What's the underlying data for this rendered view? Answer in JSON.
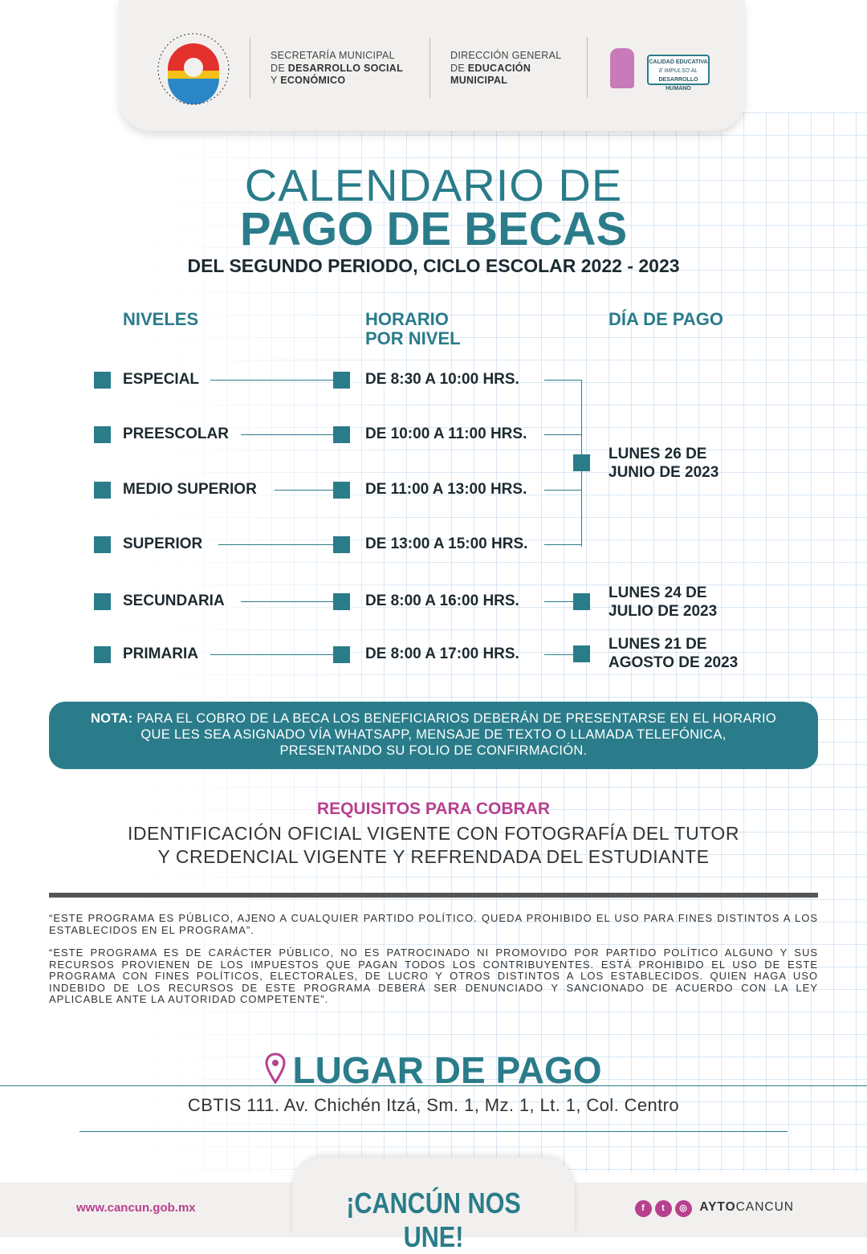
{
  "header": {
    "logo_text_top": "MUNICIPIO DE BENITO JUÁREZ",
    "logo_text_bottom": "QUINTANA ROO",
    "org1_line1": "SECRETARÍA MUNICIPAL",
    "org1_line2_prefix": "DE ",
    "org1_line2_bold": "DESARROLLO SOCIAL",
    "org1_line3_prefix": "Y ",
    "org1_line3_bold": "ECONÓMICO",
    "org2_line1": "DIRECCIÓN GENERAL",
    "org2_line2_prefix": "DE ",
    "org2_line2_bold": "EDUCACIÓN",
    "org2_line3_bold": "MUNICIPAL",
    "badge_line1": "CALIDAD EDUCATIVA",
    "badge_line2": "E IMPULSO AL",
    "badge_line3": "DESARROLLO HUMANO"
  },
  "title": {
    "line1": "CALENDARIO DE",
    "line2": "PAGO DE BECAS",
    "subtitle": "DEL SEGUNDO PERIODO, CICLO ESCOLAR 2022 - 2023"
  },
  "columns": {
    "niveles": "NIVELES",
    "horario_1": "HORARIO",
    "horario_2": "POR NIVEL",
    "dia": "DÍA DE PAGO"
  },
  "rows": [
    {
      "nivel": "ESPECIAL",
      "horario": "DE 8:30 A 10:00 HRS."
    },
    {
      "nivel": "PREESCOLAR",
      "horario": "DE 10:00 A 11:00 HRS."
    },
    {
      "nivel": "MEDIO SUPERIOR",
      "horario": "DE 11:00 A 13:00 HRS."
    },
    {
      "nivel": "SUPERIOR",
      "horario": "DE 13:00 A 15:00 HRS."
    },
    {
      "nivel": "SECUNDARIA",
      "horario": "DE 8:00 A 16:00 HRS."
    },
    {
      "nivel": "PRIMARIA",
      "horario": "DE 8:00 A 17:00 HRS."
    }
  ],
  "dates": [
    {
      "line1": "LUNES 26 DE",
      "line2": "JUNIO DE 2023"
    },
    {
      "line1": "LUNES 24 DE",
      "line2": "JULIO DE 2023"
    },
    {
      "line1": "LUNES 21 DE",
      "line2": "AGOSTO DE 2023"
    }
  ],
  "nota": {
    "label": "NOTA:",
    "line1": " PARA EL COBRO DE LA BECA LOS BENEFICIARIOS DEBERÁN DE PRESENTARSE EN EL HORARIO",
    "line2": "QUE LES SEA ASIGNADO VÍA WHATSAPP, MENSAJE DE TEXTO O LLAMADA TELEFÓNICA,",
    "line3": "PRESENTANDO SU FOLIO DE CONFIRMACIÓN."
  },
  "requisitos": {
    "title": "REQUISITOS PARA COBRAR",
    "line1": "IDENTIFICACIÓN OFICIAL VIGENTE CON FOTOGRAFÍA DEL TUTOR",
    "line2": "Y CREDENCIAL VIGENTE Y REFRENDADA DEL ESTUDIANTE"
  },
  "legal": {
    "p1": "“ESTE PROGRAMA ES PÚBLICO, AJENO A CUALQUIER PARTIDO POLÍTICO. QUEDA PROHIBIDO EL USO PARA FINES DISTINTOS A LOS ESTABLECIDOS EN EL PROGRAMA”.",
    "p2": "“ESTE PROGRAMA ES DE CARÁCTER PÚBLICO, NO ES PATROCINADO NI PROMOVIDO POR PARTIDO POLÍTICO ALGUNO Y SUS RECURSOS PROVIENEN DE LOS IMPUESTOS QUE PAGAN TODOS LOS CONTRIBUYENTES. ESTÁ PROHIBIDO EL USO DE ESTE PROGRAMA CON FINES POLÍTICOS, ELECTORALES, DE LUCRO Y OTROS DISTINTOS A LOS ESTABLECIDOS. QUIEN HAGA USO INDEBIDO DE LOS RECURSOS DE ESTE PROGRAMA DEBERÁ SER DENUNCIADO Y SANCIONADO DE ACUERDO CON LA LEY APLICABLE ANTE LA AUTORIDAD COMPETENTE”."
  },
  "lugar": {
    "title": "LUGAR DE PAGO",
    "address": "CBTIS 111. Av. Chichén Itzá, Sm. 1, Mz. 1, Lt. 1, Col. Centro",
    "icon": "map-pin-icon"
  },
  "footer": {
    "website": "www.cancun.gob.mx",
    "slogan": "¡CANCÚN NOS UNE!",
    "handle_bold": "AYTO",
    "handle_rest": "CANCUN",
    "social_icons": [
      "facebook-icon",
      "twitter-icon",
      "instagram-icon"
    ]
  },
  "colors": {
    "teal": "#2a7c8a",
    "magenta": "#b8408f",
    "dark": "#1d2a30"
  }
}
